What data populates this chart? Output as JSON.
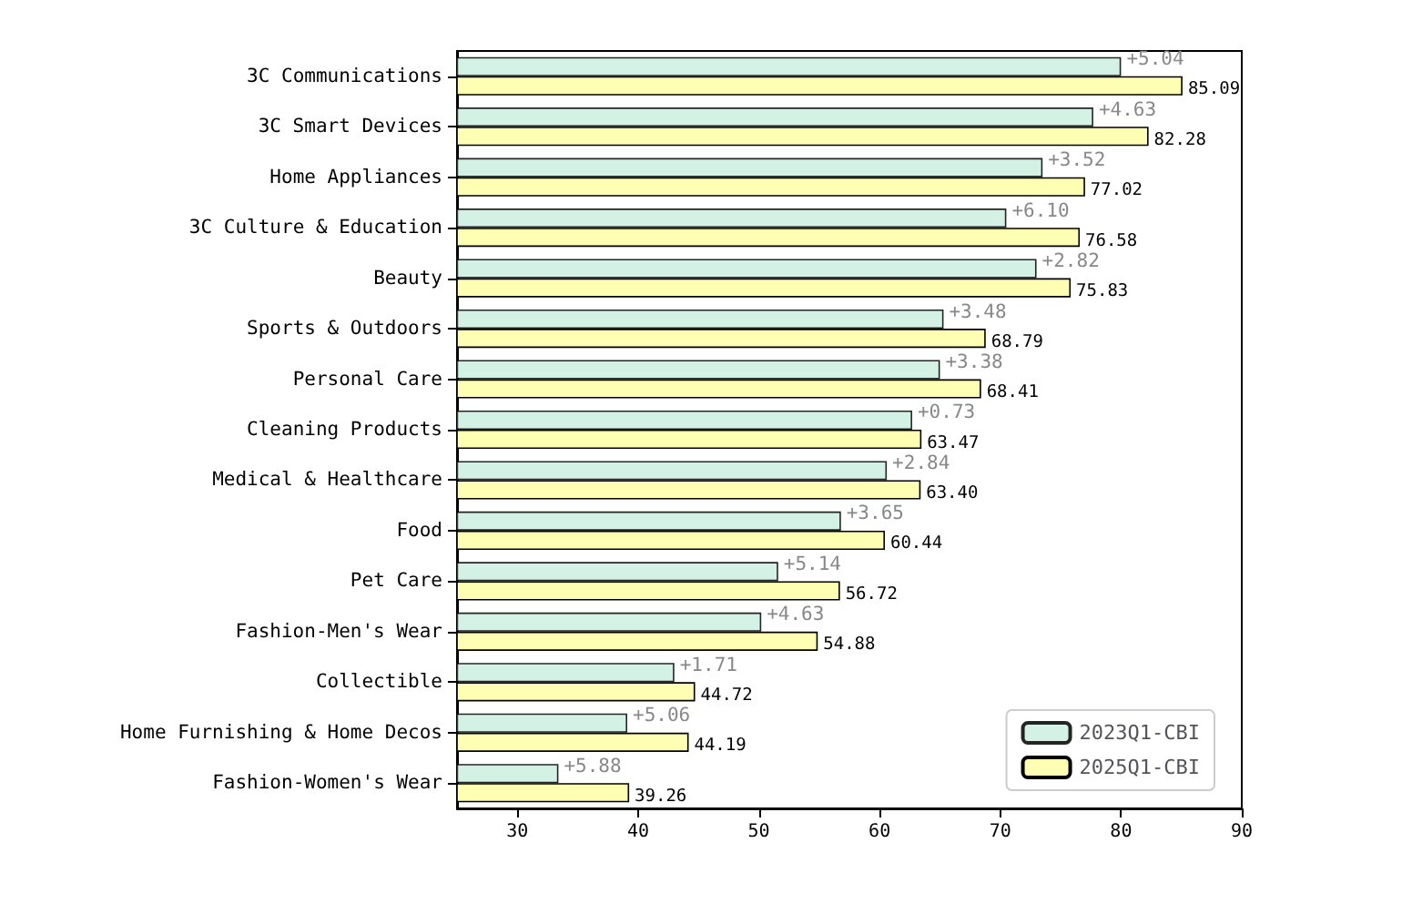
{
  "chart_data": {
    "type": "bar",
    "orientation": "horizontal",
    "categories": [
      "3C Communications",
      "3C Smart Devices",
      "Home Appliances",
      "3C Culture & Education",
      "Beauty",
      "Sports & Outdoors",
      "Personal Care",
      "Cleaning Products",
      "Medical & Healthcare",
      "Food",
      "Pet Care",
      "Fashion-Men's Wear",
      "Collectible",
      "Home Furnishing & Home Decos",
      "Fashion-Women's Wear"
    ],
    "series": [
      {
        "name": "2023Q1-CBI",
        "color": "#cdeee2",
        "values": [
          80.0,
          77.7,
          73.5,
          70.5,
          73.0,
          65.3,
          65.0,
          62.7,
          60.6,
          56.8,
          51.6,
          50.2,
          43.0,
          39.1,
          33.4
        ]
      },
      {
        "name": "2025Q1-CBI",
        "color": "#ffffb3",
        "values": [
          85.09,
          82.28,
          77.02,
          76.58,
          75.83,
          68.79,
          68.41,
          63.47,
          63.4,
          60.44,
          56.72,
          54.88,
          44.72,
          44.19,
          39.26
        ],
        "value_labels": [
          "85.09",
          "82.28",
          "77.02",
          "76.58",
          "75.83",
          "68.79",
          "68.41",
          "63.47",
          "63.40",
          "60.44",
          "56.72",
          "54.88",
          "44.72",
          "44.19",
          "39.26"
        ]
      }
    ],
    "annotations": [
      {
        "text": "+5.04",
        "x": 80.0,
        "y": "3C Communications"
      },
      {
        "text": "+4.63",
        "x": 77.7,
        "y": "3C Smart Devices"
      },
      {
        "text": "+3.52",
        "x": 73.5,
        "y": "Home Appliances"
      },
      {
        "text": "+6.10",
        "x": 70.5,
        "y": "3C Culture & Education"
      },
      {
        "text": "+2.82",
        "x": 73.0,
        "y": "Beauty"
      },
      {
        "text": "+3.48",
        "x": 65.3,
        "y": "Sports & Outdoors"
      },
      {
        "text": "+3.38",
        "x": 65.0,
        "y": "Personal Care"
      },
      {
        "text": "+0.73",
        "x": 62.7,
        "y": "Cleaning Products"
      },
      {
        "text": "+2.84",
        "x": 60.6,
        "y": "Medical & Healthcare"
      },
      {
        "text": "+3.65",
        "x": 56.8,
        "y": "Food"
      },
      {
        "text": "+5.14",
        "x": 51.6,
        "y": "Pet Care"
      },
      {
        "text": "+4.63",
        "x": 50.2,
        "y": "Fashion-Men's Wear"
      },
      {
        "text": "+1.71",
        "x": 43.0,
        "y": "Collectible"
      },
      {
        "text": "+5.06",
        "x": 39.1,
        "y": "Home Furnishing & Home Decos"
      },
      {
        "text": "+5.88",
        "x": 33.4,
        "y": "Fashion-Women's Wear"
      }
    ],
    "xlim": [
      25,
      90
    ],
    "xticks": [
      30,
      40,
      50,
      60,
      70,
      80,
      90
    ],
    "grid": false,
    "legend": "bottom right"
  }
}
